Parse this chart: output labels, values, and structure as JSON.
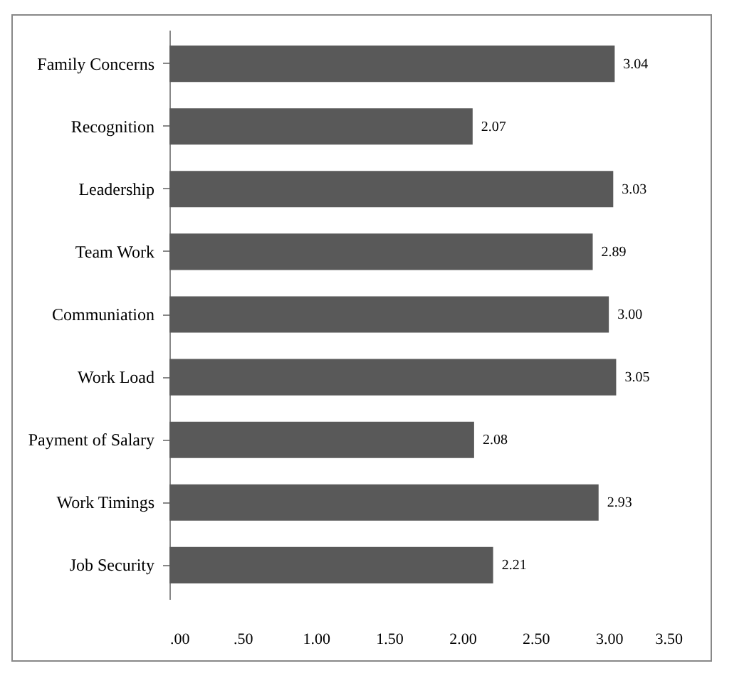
{
  "chart_data": {
    "type": "bar",
    "orientation": "horizontal",
    "categories": [
      "Family Concerns",
      "Recognition",
      "Leadership",
      "Team Work",
      "Communiation",
      "Work Load",
      "Payment of Salary",
      "Work Timings",
      "Job Security"
    ],
    "values": [
      3.04,
      2.07,
      3.03,
      2.89,
      3.0,
      3.05,
      2.08,
      2.93,
      2.21
    ],
    "color": "#595959",
    "data_labels": true,
    "value_labels": [
      "3.04",
      "2.07",
      "3.03",
      "2.89",
      "3.00",
      "3.05",
      "2.08",
      "2.93",
      "2.21"
    ],
    "xlim": [
      0,
      3.5
    ],
    "xticks": [
      {
        "value": 0,
        "label": ".00"
      },
      {
        "value": 0.5,
        "label": ".50"
      },
      {
        "value": 1,
        "label": "1.00"
      },
      {
        "value": 1.5,
        "label": "1.50"
      },
      {
        "value": 2,
        "label": "2.00"
      },
      {
        "value": 2.5,
        "label": "2.50"
      },
      {
        "value": 3,
        "label": "3.00"
      },
      {
        "value": 3.5,
        "label": "3.50"
      }
    ],
    "grid": false
  }
}
